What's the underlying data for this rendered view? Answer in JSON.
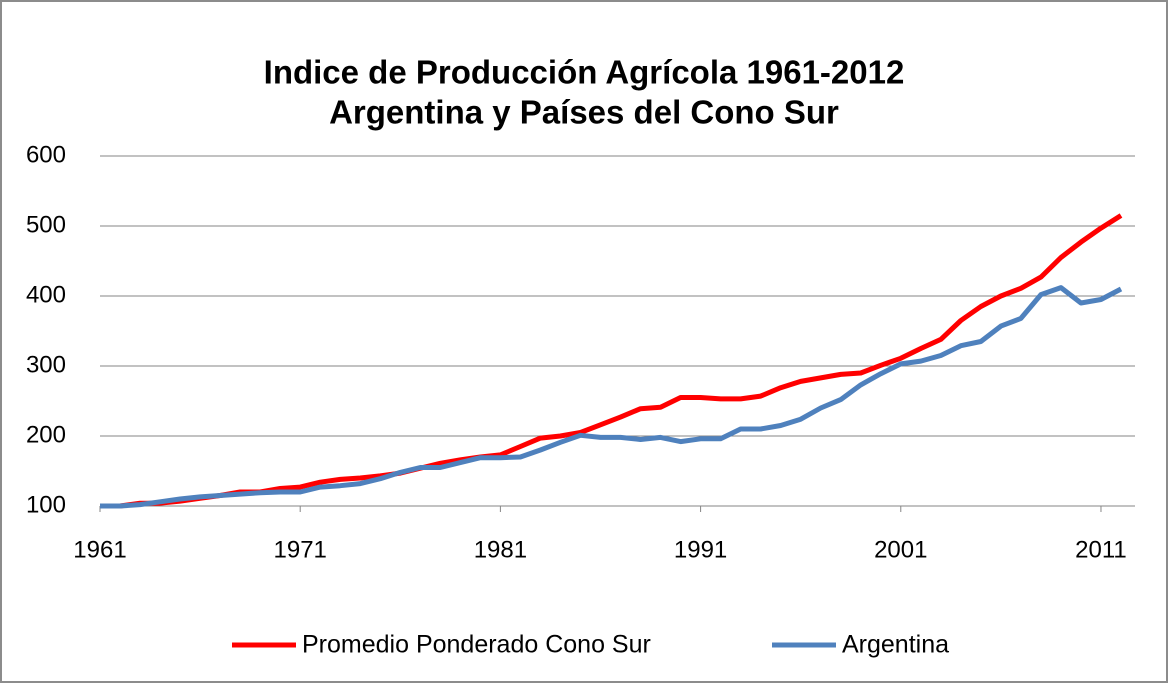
{
  "chart_data": {
    "type": "line",
    "title": [
      "Indice de Producción Agrícola 1961-2012",
      "Argentina y Países del Cono Sur"
    ],
    "x": [
      1961,
      1962,
      1963,
      1964,
      1965,
      1966,
      1967,
      1968,
      1969,
      1970,
      1971,
      1972,
      1973,
      1974,
      1975,
      1976,
      1977,
      1978,
      1979,
      1980,
      1981,
      1982,
      1983,
      1984,
      1985,
      1986,
      1987,
      1988,
      1989,
      1990,
      1991,
      1992,
      1993,
      1994,
      1995,
      1996,
      1997,
      1998,
      1999,
      2000,
      2001,
      2002,
      2003,
      2004,
      2005,
      2006,
      2007,
      2008,
      2009,
      2010,
      2011,
      2012
    ],
    "series": [
      {
        "name": "Promedio Ponderado Cono Sur",
        "color": "#ff0000",
        "values": [
          100,
          100,
          104,
          104,
          107,
          111,
          115,
          120,
          120,
          125,
          127,
          134,
          138,
          140,
          143,
          147,
          154,
          161,
          166,
          170,
          173,
          185,
          197,
          200,
          205,
          216,
          227,
          239,
          241,
          255,
          255,
          253,
          253,
          257,
          269,
          278,
          283,
          288,
          290,
          301,
          311,
          325,
          338,
          365,
          385,
          400,
          411,
          427,
          455,
          477,
          497,
          515
        ]
      },
      {
        "name": "Argentina",
        "color": "#4f81bd",
        "values": [
          100,
          100,
          102,
          106,
          110,
          113,
          115,
          117,
          119,
          120,
          120,
          127,
          129,
          132,
          139,
          148,
          155,
          155,
          162,
          169,
          169,
          170,
          180,
          191,
          201,
          198,
          198,
          195,
          198,
          192,
          196,
          196,
          210,
          210,
          215,
          224,
          240,
          252,
          273,
          289,
          303,
          307,
          315,
          329,
          335,
          357,
          368,
          402,
          412,
          390,
          395,
          410
        ]
      }
    ],
    "xlim": [
      1961,
      2012
    ],
    "xticks": [
      1961,
      1971,
      1981,
      1991,
      2001,
      2011
    ],
    "ylim": [
      100,
      600
    ],
    "yticks": [
      100,
      200,
      300,
      400,
      500,
      600
    ],
    "grid": true,
    "legend": "bottom"
  }
}
